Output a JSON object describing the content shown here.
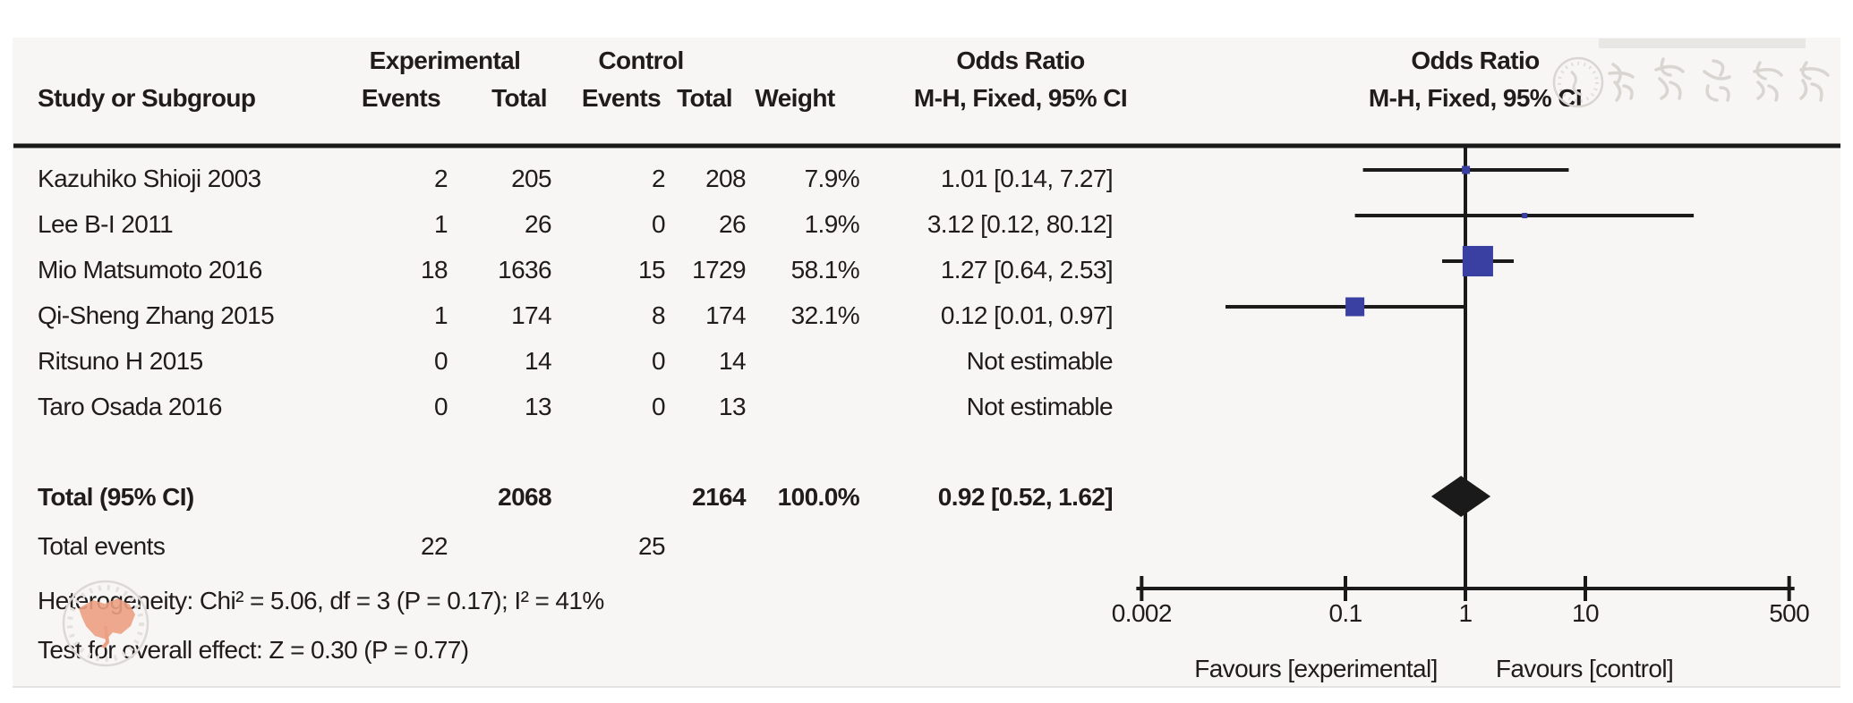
{
  "table": {
    "group_experimental": "Experimental",
    "group_control": "Control",
    "col_study": "Study or Subgroup",
    "col_events": "Events",
    "col_total": "Total",
    "col_weight": "Weight",
    "or_title": "Odds Ratio",
    "or_method": "M-H, Fixed, 95% CI"
  },
  "footer": {
    "heterogeneity": "Heterogeneity: Chi² = 5.06, df = 3 (P = 0.17); I² = 41%",
    "overall_effect": "Test for overall effect: Z = 0.30 (P = 0.77)"
  },
  "watermark": {
    "seal_text": "中华医学会",
    "seal_description": "Chinese Medical Association seal"
  },
  "colors": {
    "marker_blue": "#3a3fa2",
    "line_black": "#1a1a1a",
    "watermark_gray": "#d9d6d2",
    "watermark_orange": "#eca083",
    "panel_bg": "#f7f6f4"
  },
  "chart_data": {
    "type": "forest",
    "effect_measure": "Odds Ratio",
    "method": "M-H, Fixed, 95% CI",
    "x_scale": "log",
    "x_ticks": [
      0.002,
      0.1,
      1,
      10,
      500
    ],
    "x_tick_labels": [
      "0.002",
      "0.1",
      "1",
      "10",
      "500"
    ],
    "favours_left": "Favours [experimental]",
    "favours_right": "Favours [control]",
    "studies": [
      {
        "name": "Kazuhiko Shioji 2003",
        "events_exp": "2",
        "total_exp": "205",
        "events_ctl": "2",
        "total_ctl": "208",
        "weight": "7.9%",
        "weight_pct": 7.9,
        "or": 1.01,
        "ci_low": 0.14,
        "ci_high": 7.27,
        "ci_text": "1.01 [0.14, 7.27]",
        "estimable": true
      },
      {
        "name": "Lee B-I 2011",
        "events_exp": "1",
        "total_exp": "26",
        "events_ctl": "0",
        "total_ctl": "26",
        "weight": "1.9%",
        "weight_pct": 1.9,
        "or": 3.12,
        "ci_low": 0.12,
        "ci_high": 80.12,
        "ci_text": "3.12 [0.12, 80.12]",
        "estimable": true
      },
      {
        "name": "Mio Matsumoto 2016",
        "events_exp": "18",
        "total_exp": "1636",
        "events_ctl": "15",
        "total_ctl": "1729",
        "weight": "58.1%",
        "weight_pct": 58.1,
        "or": 1.27,
        "ci_low": 0.64,
        "ci_high": 2.53,
        "ci_text": "1.27 [0.64, 2.53]",
        "estimable": true
      },
      {
        "name": "Qi-Sheng Zhang 2015",
        "events_exp": "1",
        "total_exp": "174",
        "events_ctl": "8",
        "total_ctl": "174",
        "weight": "32.1%",
        "weight_pct": 32.1,
        "or": 0.12,
        "ci_low": 0.01,
        "ci_high": 0.97,
        "ci_text": "0.12 [0.01, 0.97]",
        "estimable": true
      },
      {
        "name": "Ritsuno H 2015",
        "events_exp": "0",
        "total_exp": "14",
        "events_ctl": "0",
        "total_ctl": "14",
        "weight": "",
        "weight_pct": 0,
        "ci_text": "Not estimable",
        "estimable": false
      },
      {
        "name": "Taro Osada 2016",
        "events_exp": "0",
        "total_exp": "13",
        "events_ctl": "0",
        "total_ctl": "13",
        "weight": "",
        "weight_pct": 0,
        "ci_text": "Not estimable",
        "estimable": false
      }
    ],
    "total": {
      "label": "Total (95% CI)",
      "total_exp": "2068",
      "total_ctl": "2164",
      "weight": "100.0%",
      "or": 0.92,
      "ci_low": 0.52,
      "ci_high": 1.62,
      "ci_text": "0.92 [0.52, 1.62]"
    },
    "total_events": {
      "label": "Total events",
      "exp": "22",
      "ctl": "25"
    }
  }
}
